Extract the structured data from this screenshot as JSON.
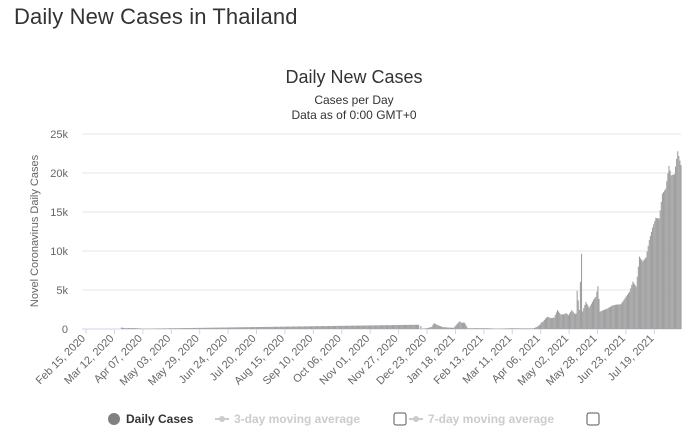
{
  "page": {
    "title": "Daily New Cases in Thailand"
  },
  "chart_data": {
    "type": "bar",
    "title": "Daily New Cases",
    "subtitle": "Cases per Day",
    "subtitle2": "Data as of 0:00 GMT+0",
    "ylabel": "Novel Coronavirus Daily Cases",
    "ylim": [
      0,
      25000
    ],
    "yticks": [
      "0",
      "5k",
      "10k",
      "15k",
      "20k",
      "25k"
    ],
    "x_start": "2020-02-15",
    "x_end": "2021-08-16",
    "xtick_labels": [
      "Feb 15, 2020",
      "Mar 12, 2020",
      "Apr 07, 2020",
      "May 03, 2020",
      "May 29, 2020",
      "Jun 24, 2020",
      "Jul 20, 2020",
      "Aug 15, 2020",
      "Sep 10, 2020",
      "Oct 06, 2020",
      "Nov 01, 2020",
      "Nov 27, 2020",
      "Dec 23, 2020",
      "Jan 18, 2021",
      "Feb 13, 2021",
      "Mar 11, 2021",
      "Apr 06, 2021",
      "May 02, 2021",
      "May 28, 2021",
      "Jun 23, 2021",
      "Jul 19, 2021"
    ],
    "grid": true,
    "series": [
      {
        "name": "Daily Cases",
        "color": "#a0a0a0",
        "points": [
          [
            "2020-03-22",
            188
          ],
          [
            "2020-03-25",
            107
          ],
          [
            "2020-04-01",
            120
          ],
          [
            "2020-04-05",
            102
          ],
          [
            "2020-04-12",
            45
          ],
          [
            "2020-12-19",
            548
          ],
          [
            "2020-12-20",
            0
          ],
          [
            "2020-12-21",
            382
          ],
          [
            "2020-12-22",
            46
          ],
          [
            "2020-12-27",
            110
          ],
          [
            "2020-12-31",
            279
          ],
          [
            "2021-01-02",
            745
          ],
          [
            "2021-01-05",
            527
          ],
          [
            "2021-01-10",
            249
          ],
          [
            "2021-01-15",
            188
          ],
          [
            "2021-01-20",
            150
          ],
          [
            "2021-01-25",
            914
          ],
          [
            "2021-01-26",
            959
          ],
          [
            "2021-01-27",
            819
          ],
          [
            "2021-01-30",
            802
          ],
          [
            "2021-02-02",
            100
          ],
          [
            "2021-02-10",
            105
          ],
          [
            "2021-02-20",
            100
          ],
          [
            "2021-03-01",
            50
          ],
          [
            "2021-03-15",
            100
          ],
          [
            "2021-03-25",
            80
          ],
          [
            "2021-04-03",
            84
          ],
          [
            "2021-04-06",
            250
          ],
          [
            "2021-04-09",
            559
          ],
          [
            "2021-04-10",
            789
          ],
          [
            "2021-04-12",
            985
          ],
          [
            "2021-04-14",
            1335
          ],
          [
            "2021-04-16",
            1582
          ],
          [
            "2021-04-19",
            1390
          ],
          [
            "2021-04-22",
            1470
          ],
          [
            "2021-04-25",
            2438
          ],
          [
            "2021-04-28",
            1871
          ],
          [
            "2021-05-01",
            1891
          ],
          [
            "2021-05-03",
            2041
          ],
          [
            "2021-05-05",
            1763
          ],
          [
            "2021-05-08",
            2419
          ],
          [
            "2021-05-10",
            2101
          ],
          [
            "2021-05-11",
            1919
          ],
          [
            "2021-05-12",
            1983
          ],
          [
            "2021-05-13",
            4887
          ],
          [
            "2021-05-15",
            2456
          ],
          [
            "2021-05-17",
            9635
          ],
          [
            "2021-05-18",
            2256
          ],
          [
            "2021-05-21",
            3481
          ],
          [
            "2021-05-24",
            2713
          ],
          [
            "2021-05-28",
            3759
          ],
          [
            "2021-05-30",
            4115
          ],
          [
            "2021-06-01",
            5485
          ],
          [
            "2021-06-03",
            2230
          ],
          [
            "2021-06-06",
            2419
          ],
          [
            "2021-06-10",
            2640
          ],
          [
            "2021-06-14",
            3000
          ],
          [
            "2021-06-18",
            3129
          ],
          [
            "2021-06-22",
            3175
          ],
          [
            "2021-06-26",
            3995
          ],
          [
            "2021-06-30",
            4786
          ],
          [
            "2021-07-03",
            6087
          ],
          [
            "2021-07-06",
            5420
          ],
          [
            "2021-07-09",
            9276
          ],
          [
            "2021-07-12",
            8656
          ],
          [
            "2021-07-15",
            9186
          ],
          [
            "2021-07-18",
            11397
          ],
          [
            "2021-07-21",
            13002
          ],
          [
            "2021-07-24",
            14260
          ],
          [
            "2021-07-27",
            14150
          ],
          [
            "2021-07-30",
            17345
          ],
          [
            "2021-08-02",
            17970
          ],
          [
            "2021-08-05",
            20920
          ],
          [
            "2021-08-07",
            19700
          ],
          [
            "2021-08-10",
            19843
          ],
          [
            "2021-08-13",
            22782
          ],
          [
            "2021-08-16",
            21000
          ]
        ]
      }
    ],
    "legend": [
      {
        "label": "Daily Cases",
        "active": true,
        "color": "#a0a0a0"
      },
      {
        "label": "3-day moving average",
        "active": false,
        "color": "#cccccc"
      },
      {
        "label": "7-day moving average",
        "active": false,
        "color": "#cccccc"
      }
    ],
    "legend_position": "bottom"
  }
}
